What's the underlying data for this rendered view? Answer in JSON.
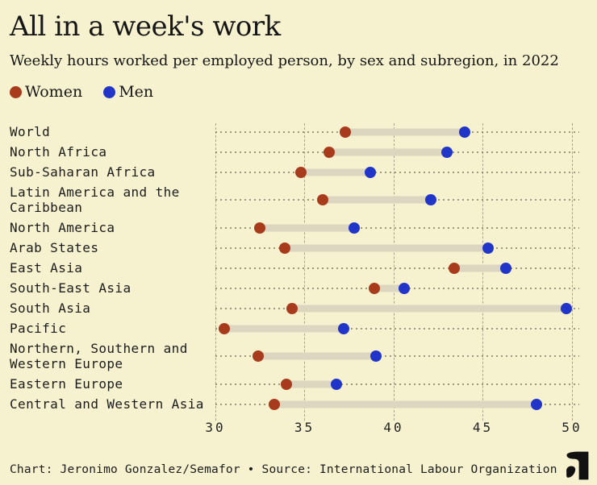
{
  "header": {
    "title": "All in a week's work",
    "subtitle": "Weekly hours worked per employed person, by sex and subregion, in 2022"
  },
  "legend": [
    {
      "label": "Women",
      "color": "#a83b1c"
    },
    {
      "label": "Men",
      "color": "#2135c8"
    }
  ],
  "chart_data": {
    "type": "scatter",
    "variant": "dumbbell",
    "title": "All in a week's work",
    "subtitle": "Weekly hours worked per employed person, by sex and subregion, in 2022",
    "categories": [
      "World",
      "North Africa",
      "Sub-Saharan Africa",
      "Latin America and the Caribbean",
      "North America",
      "Arab States",
      "East Asia",
      "South-East Asia",
      "South Asia",
      "Pacific",
      "Northern, Southern and Western Europe",
      "Eastern Europe",
      "Central and Western Asia"
    ],
    "series": [
      {
        "name": "Women",
        "values": [
          37.3,
          36.4,
          34.8,
          36.0,
          32.5,
          33.9,
          43.4,
          38.9,
          34.3,
          30.5,
          32.4,
          34.0,
          33.3
        ]
      },
      {
        "name": "Men",
        "values": [
          44.0,
          43.0,
          38.7,
          42.1,
          37.8,
          45.3,
          46.3,
          40.6,
          49.7,
          37.2,
          39.0,
          36.8,
          48.0
        ]
      }
    ],
    "xlabel": "",
    "ylabel": "",
    "xlim": [
      30,
      50
    ],
    "ticks": [
      "30",
      "35",
      "40",
      "45",
      "50"
    ],
    "grid": true,
    "legend_position": "top-left",
    "units": "hours per week"
  },
  "footer": {
    "credit": "Chart: Jeronimo Gonzalez/Semafor • Source: International Labour Organization",
    "logo": "semafor-logo"
  },
  "colors": {
    "background": "#f6f2d0",
    "women": "#a83b1c",
    "men": "#2135c8",
    "bar": "#dcd6c0",
    "grid": "#69644e",
    "text": "#161616"
  }
}
